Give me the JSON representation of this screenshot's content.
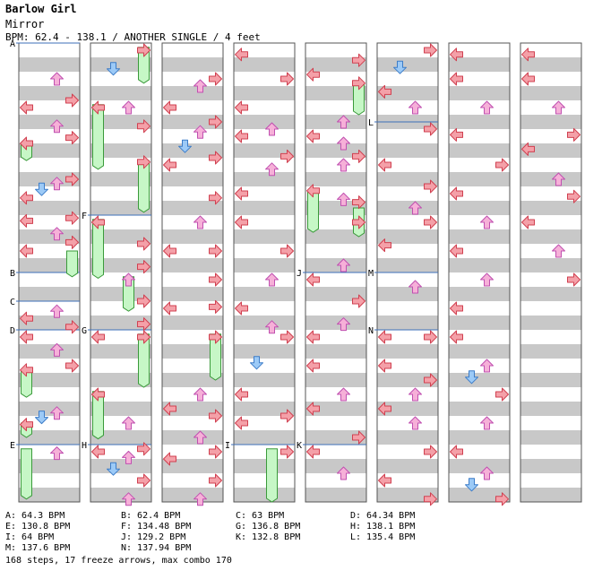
{
  "title": "Barlow Girl",
  "subtitle": "Mirror",
  "meta": "BPM: 62.4 - 138.1 / ANOTHER SINGLE / 4 feet",
  "colors": {
    "left": "#f4a0a8",
    "down": "#9ccaf7",
    "up": "#f6b0d8",
    "right": "#f4a0a8",
    "freeze": "#c6f7c6",
    "band": "#c8c8c8",
    "bpm_line": "#3d6fb8"
  },
  "markers": [
    {
      "label": "A",
      "col": 0,
      "beat": 0
    },
    {
      "label": "B",
      "col": 0,
      "beat": 16
    },
    {
      "label": "C",
      "col": 0,
      "beat": 18
    },
    {
      "label": "D",
      "col": 0,
      "beat": 20
    },
    {
      "label": "E",
      "col": 0,
      "beat": 28
    },
    {
      "label": "F",
      "col": 1,
      "beat": 12
    },
    {
      "label": "G",
      "col": 1,
      "beat": 20
    },
    {
      "label": "H",
      "col": 1,
      "beat": 28
    },
    {
      "label": "I",
      "col": 3,
      "beat": 28
    },
    {
      "label": "J",
      "col": 4,
      "beat": 16
    },
    {
      "label": "K",
      "col": 4,
      "beat": 28
    },
    {
      "label": "L",
      "col": 5,
      "beat": 5.5
    },
    {
      "label": "M",
      "col": 5,
      "beat": 16
    },
    {
      "label": "N",
      "col": 5,
      "beat": 20
    }
  ],
  "legend": [
    [
      "A: 64.3 BPM",
      "B: 62.4 BPM",
      "C: 63 BPM",
      "D: 64.34 BPM"
    ],
    [
      "E: 130.8 BPM",
      "F: 134.48 BPM",
      "G: 136.8 BPM",
      "H: 138.1 BPM"
    ],
    [
      "I: 64 BPM",
      "J: 129.2 BPM",
      "K: 132.8 BPM",
      "L: 135.4 BPM"
    ],
    [
      "M: 137.6 BPM",
      "N: 137.94 BPM"
    ]
  ],
  "summary": "168 steps, 17 freeze arrows, max combo 170",
  "freezes": [
    {
      "col": 0,
      "lane": 0,
      "start": 7,
      "end": 8.2
    },
    {
      "col": 0,
      "lane": 3,
      "start": 14.5,
      "end": 16.3
    },
    {
      "col": 0,
      "lane": 0,
      "start": 22.8,
      "end": 24.7
    },
    {
      "col": 0,
      "lane": 0,
      "start": 26.5,
      "end": 27.5
    },
    {
      "col": 0,
      "lane": 0,
      "start": 28.3,
      "end": 31.8
    },
    {
      "col": 1,
      "lane": 3,
      "start": 0.3,
      "end": 2.8
    },
    {
      "col": 1,
      "lane": 0,
      "start": 4.3,
      "end": 8.8
    },
    {
      "col": 1,
      "lane": 3,
      "start": 8.2,
      "end": 11.8
    },
    {
      "col": 1,
      "lane": 0,
      "start": 12.3,
      "end": 16.4
    },
    {
      "col": 1,
      "lane": 2,
      "start": 16.3,
      "end": 18.7
    },
    {
      "col": 1,
      "lane": 3,
      "start": 20.3,
      "end": 24.0
    },
    {
      "col": 1,
      "lane": 0,
      "start": 24.3,
      "end": 27.6
    },
    {
      "col": 2,
      "lane": 3,
      "start": 20.3,
      "end": 23.5
    },
    {
      "col": 3,
      "lane": 2,
      "start": 28.3,
      "end": 32
    },
    {
      "col": 4,
      "lane": 3,
      "start": 2.8,
      "end": 5.0
    },
    {
      "col": 4,
      "lane": 0,
      "start": 10.3,
      "end": 13.2
    },
    {
      "col": 4,
      "lane": 3,
      "start": 11.5,
      "end": 13.5
    }
  ],
  "notes": [
    {
      "col": 0,
      "lane": 2,
      "beat": 2.5
    },
    {
      "col": 0,
      "lane": 3,
      "beat": 4
    },
    {
      "col": 0,
      "lane": 0,
      "beat": 4.5
    },
    {
      "col": 0,
      "lane": 2,
      "beat": 5.8
    },
    {
      "col": 0,
      "lane": 3,
      "beat": 6.6
    },
    {
      "col": 0,
      "lane": 0,
      "beat": 7
    },
    {
      "col": 0,
      "lane": 2,
      "beat": 9.8
    },
    {
      "col": 0,
      "lane": 3,
      "beat": 9.5
    },
    {
      "col": 0,
      "lane": 1,
      "beat": 10.2
    },
    {
      "col": 0,
      "lane": 0,
      "beat": 10.8
    },
    {
      "col": 0,
      "lane": 0,
      "beat": 12.4
    },
    {
      "col": 0,
      "lane": 3,
      "beat": 12.2
    },
    {
      "col": 0,
      "lane": 2,
      "beat": 13.3
    },
    {
      "col": 0,
      "lane": 3,
      "beat": 13.9
    },
    {
      "col": 0,
      "lane": 0,
      "beat": 14.5
    },
    {
      "col": 0,
      "lane": 2,
      "beat": 18.7
    },
    {
      "col": 0,
      "lane": 0,
      "beat": 19.2
    },
    {
      "col": 0,
      "lane": 3,
      "beat": 19.8
    },
    {
      "col": 0,
      "lane": 0,
      "beat": 20.5
    },
    {
      "col": 0,
      "lane": 2,
      "beat": 21.4
    },
    {
      "col": 0,
      "lane": 3,
      "beat": 22.5
    },
    {
      "col": 0,
      "lane": 0,
      "beat": 22.8
    },
    {
      "col": 0,
      "lane": 2,
      "beat": 25.8
    },
    {
      "col": 0,
      "lane": 1,
      "beat": 26.1
    },
    {
      "col": 0,
      "lane": 0,
      "beat": 26.6
    },
    {
      "col": 0,
      "lane": 2,
      "beat": 28.6
    },
    {
      "col": 1,
      "lane": 1,
      "beat": 1.8
    },
    {
      "col": 1,
      "lane": 3,
      "beat": 0.5
    },
    {
      "col": 1,
      "lane": 0,
      "beat": 4.5
    },
    {
      "col": 1,
      "lane": 2,
      "beat": 4.5
    },
    {
      "col": 1,
      "lane": 3,
      "beat": 5.8
    },
    {
      "col": 1,
      "lane": 3,
      "beat": 8.3
    },
    {
      "col": 1,
      "lane": 3,
      "beat": 14
    },
    {
      "col": 1,
      "lane": 0,
      "beat": 12.5
    },
    {
      "col": 1,
      "lane": 3,
      "beat": 15.6
    },
    {
      "col": 1,
      "lane": 2,
      "beat": 16.5
    },
    {
      "col": 1,
      "lane": 3,
      "beat": 18
    },
    {
      "col": 1,
      "lane": 3,
      "beat": 19.6
    },
    {
      "col": 1,
      "lane": 0,
      "beat": 20.5
    },
    {
      "col": 1,
      "lane": 3,
      "beat": 20.5
    },
    {
      "col": 1,
      "lane": 0,
      "beat": 24.5
    },
    {
      "col": 1,
      "lane": 2,
      "beat": 26.5
    },
    {
      "col": 1,
      "lane": 0,
      "beat": 28.5
    },
    {
      "col": 1,
      "lane": 2,
      "beat": 28.9
    },
    {
      "col": 1,
      "lane": 3,
      "beat": 28.3
    },
    {
      "col": 1,
      "lane": 1,
      "beat": 29.7
    },
    {
      "col": 1,
      "lane": 3,
      "beat": 30.5
    },
    {
      "col": 1,
      "lane": 2,
      "beat": 31.8
    },
    {
      "col": 2,
      "lane": 3,
      "beat": 2.5
    },
    {
      "col": 2,
      "lane": 2,
      "beat": 3
    },
    {
      "col": 2,
      "lane": 0,
      "beat": 4.5
    },
    {
      "col": 2,
      "lane": 3,
      "beat": 5.5
    },
    {
      "col": 2,
      "lane": 2,
      "beat": 6.2
    },
    {
      "col": 2,
      "lane": 1,
      "beat": 7.2
    },
    {
      "col": 2,
      "lane": 3,
      "beat": 8
    },
    {
      "col": 2,
      "lane": 0,
      "beat": 8.5
    },
    {
      "col": 2,
      "lane": 3,
      "beat": 10.8
    },
    {
      "col": 2,
      "lane": 2,
      "beat": 12.5
    },
    {
      "col": 2,
      "lane": 3,
      "beat": 14.5
    },
    {
      "col": 2,
      "lane": 0,
      "beat": 14.5
    },
    {
      "col": 2,
      "lane": 3,
      "beat": 16.5
    },
    {
      "col": 2,
      "lane": 0,
      "beat": 18.5
    },
    {
      "col": 2,
      "lane": 3,
      "beat": 18.4
    },
    {
      "col": 2,
      "lane": 3,
      "beat": 20.5
    },
    {
      "col": 2,
      "lane": 2,
      "beat": 24.5
    },
    {
      "col": 2,
      "lane": 0,
      "beat": 25.5
    },
    {
      "col": 2,
      "lane": 3,
      "beat": 26
    },
    {
      "col": 2,
      "lane": 2,
      "beat": 27.5
    },
    {
      "col": 2,
      "lane": 3,
      "beat": 28.5
    },
    {
      "col": 2,
      "lane": 0,
      "beat": 29
    },
    {
      "col": 2,
      "lane": 3,
      "beat": 30.5
    },
    {
      "col": 2,
      "lane": 2,
      "beat": 31.8
    },
    {
      "col": 3,
      "lane": 0,
      "beat": 0.8
    },
    {
      "col": 3,
      "lane": 3,
      "beat": 2.5
    },
    {
      "col": 3,
      "lane": 0,
      "beat": 4.5
    },
    {
      "col": 3,
      "lane": 2,
      "beat": 6
    },
    {
      "col": 3,
      "lane": 0,
      "beat": 6.5
    },
    {
      "col": 3,
      "lane": 3,
      "beat": 7.9
    },
    {
      "col": 3,
      "lane": 2,
      "beat": 8.8
    },
    {
      "col": 3,
      "lane": 0,
      "beat": 10.5
    },
    {
      "col": 3,
      "lane": 0,
      "beat": 12.5
    },
    {
      "col": 3,
      "lane": 3,
      "beat": 14.5
    },
    {
      "col": 3,
      "lane": 2,
      "beat": 16.5
    },
    {
      "col": 3,
      "lane": 0,
      "beat": 18.5
    },
    {
      "col": 3,
      "lane": 2,
      "beat": 19.8
    },
    {
      "col": 3,
      "lane": 3,
      "beat": 20.5
    },
    {
      "col": 3,
      "lane": 1,
      "beat": 22.3
    },
    {
      "col": 3,
      "lane": 0,
      "beat": 24.5
    },
    {
      "col": 3,
      "lane": 3,
      "beat": 26
    },
    {
      "col": 3,
      "lane": 0,
      "beat": 26.5
    },
    {
      "col": 3,
      "lane": 3,
      "beat": 28.5
    },
    {
      "col": 4,
      "lane": 3,
      "beat": 1.2
    },
    {
      "col": 4,
      "lane": 0,
      "beat": 2.2
    },
    {
      "col": 4,
      "lane": 3,
      "beat": 2.8
    },
    {
      "col": 4,
      "lane": 2,
      "beat": 5.5
    },
    {
      "col": 4,
      "lane": 0,
      "beat": 6.5
    },
    {
      "col": 4,
      "lane": 2,
      "beat": 7
    },
    {
      "col": 4,
      "lane": 3,
      "beat": 7.9
    },
    {
      "col": 4,
      "lane": 2,
      "beat": 8.5
    },
    {
      "col": 4,
      "lane": 0,
      "beat": 10.3
    },
    {
      "col": 4,
      "lane": 2,
      "beat": 10.9
    },
    {
      "col": 4,
      "lane": 3,
      "beat": 11.1
    },
    {
      "col": 4,
      "lane": 3,
      "beat": 12.5
    },
    {
      "col": 4,
      "lane": 2,
      "beat": 15.5
    },
    {
      "col": 4,
      "lane": 0,
      "beat": 16.5
    },
    {
      "col": 4,
      "lane": 3,
      "beat": 18
    },
    {
      "col": 4,
      "lane": 2,
      "beat": 19.6
    },
    {
      "col": 4,
      "lane": 0,
      "beat": 20.5
    },
    {
      "col": 4,
      "lane": 0,
      "beat": 22.5
    },
    {
      "col": 4,
      "lane": 2,
      "beat": 24.5
    },
    {
      "col": 4,
      "lane": 0,
      "beat": 25.5
    },
    {
      "col": 4,
      "lane": 3,
      "beat": 27.5
    },
    {
      "col": 4,
      "lane": 0,
      "beat": 28.5
    },
    {
      "col": 4,
      "lane": 2,
      "beat": 30
    },
    {
      "col": 5,
      "lane": 3,
      "beat": 0.5
    },
    {
      "col": 5,
      "lane": 1,
      "beat": 1.7
    },
    {
      "col": 5,
      "lane": 0,
      "beat": 3.4
    },
    {
      "col": 5,
      "lane": 2,
      "beat": 4.5
    },
    {
      "col": 5,
      "lane": 3,
      "beat": 6
    },
    {
      "col": 5,
      "lane": 0,
      "beat": 8.5
    },
    {
      "col": 5,
      "lane": 3,
      "beat": 10
    },
    {
      "col": 5,
      "lane": 2,
      "beat": 11.5
    },
    {
      "col": 5,
      "lane": 3,
      "beat": 12.5
    },
    {
      "col": 5,
      "lane": 0,
      "beat": 14.1
    },
    {
      "col": 5,
      "lane": 2,
      "beat": 17
    },
    {
      "col": 5,
      "lane": 0,
      "beat": 20.5
    },
    {
      "col": 5,
      "lane": 3,
      "beat": 20.5
    },
    {
      "col": 5,
      "lane": 0,
      "beat": 22.5
    },
    {
      "col": 5,
      "lane": 3,
      "beat": 23.5
    },
    {
      "col": 5,
      "lane": 2,
      "beat": 24.5
    },
    {
      "col": 5,
      "lane": 0,
      "beat": 25.5
    },
    {
      "col": 5,
      "lane": 2,
      "beat": 26.5
    },
    {
      "col": 5,
      "lane": 3,
      "beat": 28.5
    },
    {
      "col": 5,
      "lane": 0,
      "beat": 30.5
    },
    {
      "col": 5,
      "lane": 3,
      "beat": 31.8
    },
    {
      "col": 6,
      "lane": 0,
      "beat": 0.8
    },
    {
      "col": 6,
      "lane": 0,
      "beat": 2.5
    },
    {
      "col": 6,
      "lane": 2,
      "beat": 4.5
    },
    {
      "col": 6,
      "lane": 0,
      "beat": 6.4
    },
    {
      "col": 6,
      "lane": 3,
      "beat": 8.5
    },
    {
      "col": 6,
      "lane": 0,
      "beat": 10.5
    },
    {
      "col": 6,
      "lane": 2,
      "beat": 12.5
    },
    {
      "col": 6,
      "lane": 0,
      "beat": 14.5
    },
    {
      "col": 6,
      "lane": 2,
      "beat": 16.5
    },
    {
      "col": 6,
      "lane": 0,
      "beat": 18.5
    },
    {
      "col": 6,
      "lane": 0,
      "beat": 20.5
    },
    {
      "col": 6,
      "lane": 2,
      "beat": 22.5
    },
    {
      "col": 6,
      "lane": 1,
      "beat": 23.3
    },
    {
      "col": 6,
      "lane": 3,
      "beat": 24.5
    },
    {
      "col": 6,
      "lane": 2,
      "beat": 26.5
    },
    {
      "col": 6,
      "lane": 0,
      "beat": 28.5
    },
    {
      "col": 6,
      "lane": 2,
      "beat": 30
    },
    {
      "col": 6,
      "lane": 1,
      "beat": 30.8
    },
    {
      "col": 6,
      "lane": 3,
      "beat": 31.8
    },
    {
      "col": 7,
      "lane": 0,
      "beat": 0.8
    },
    {
      "col": 7,
      "lane": 0,
      "beat": 2.5
    },
    {
      "col": 7,
      "lane": 2,
      "beat": 4.5
    },
    {
      "col": 7,
      "lane": 3,
      "beat": 6.4
    },
    {
      "col": 7,
      "lane": 0,
      "beat": 7.4
    },
    {
      "col": 7,
      "lane": 2,
      "beat": 9.5
    },
    {
      "col": 7,
      "lane": 3,
      "beat": 10.7
    },
    {
      "col": 7,
      "lane": 0,
      "beat": 12.5
    },
    {
      "col": 7,
      "lane": 2,
      "beat": 14.5
    },
    {
      "col": 7,
      "lane": 3,
      "beat": 16.5
    }
  ]
}
